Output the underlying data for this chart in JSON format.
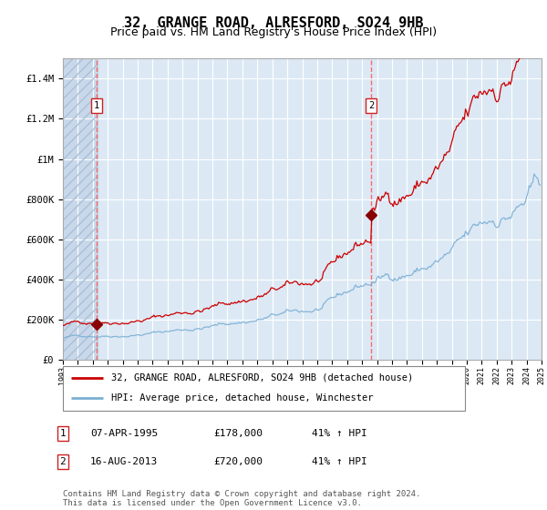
{
  "title": "32, GRANGE ROAD, ALRESFORD, SO24 9HB",
  "subtitle": "Price paid vs. HM Land Registry's House Price Index (HPI)",
  "background_color": "#dce9f5",
  "plot_bg_color": "#dce9f5",
  "grid_color": "#ffffff",
  "red_line_color": "#cc0000",
  "blue_line_color": "#7bafd4",
  "marker_color": "#880000",
  "dashed_line_color": "#ff5555",
  "ylim": [
    0,
    1500000
  ],
  "yticks": [
    0,
    200000,
    400000,
    600000,
    800000,
    1000000,
    1200000,
    1400000
  ],
  "ytick_labels": [
    "£0",
    "£200K",
    "£400K",
    "£600K",
    "£800K",
    "£1M",
    "£1.2M",
    "£1.4M"
  ],
  "xstart_year": 1993,
  "xend_year": 2025,
  "sale1_year": 1995.27,
  "sale1_price": 178000,
  "sale1_label": "1",
  "sale2_year": 2013.62,
  "sale2_price": 720000,
  "sale2_label": "2",
  "legend_line1": "32, GRANGE ROAD, ALRESFORD, SO24 9HB (detached house)",
  "legend_line2": "HPI: Average price, detached house, Winchester",
  "table_row1": [
    "1",
    "07-APR-1995",
    "£178,000",
    "41% ↑ HPI"
  ],
  "table_row2": [
    "2",
    "16-AUG-2013",
    "£720,000",
    "41% ↑ HPI"
  ],
  "footer": "Contains HM Land Registry data © Crown copyright and database right 2024.\nThis data is licensed under the Open Government Licence v3.0.",
  "title_fontsize": 11,
  "subtitle_fontsize": 9
}
